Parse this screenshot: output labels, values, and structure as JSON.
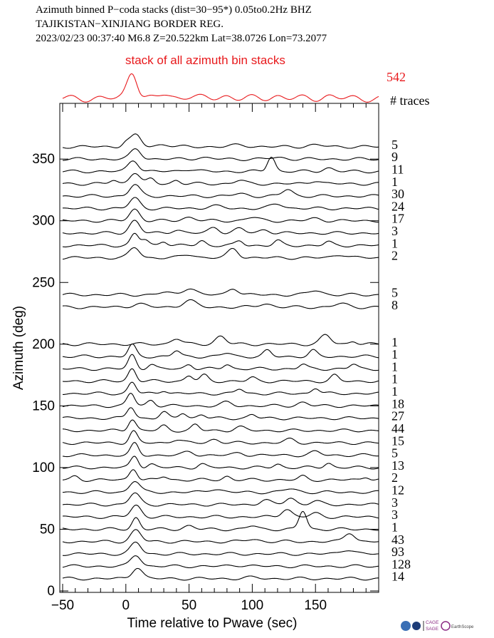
{
  "header": {
    "line1": "Azimuth binned P−coda stacks (dist=30−95*)  0.05to0.2Hz  BHZ",
    "line2": "TAJIKISTAN−XINJIANG BORDER REG.",
    "line3": "2023/02/23  00:37:40  M6.8  Z=20.522km Lat=38.0726 Lon=73.2077"
  },
  "stack": {
    "label": "stack of all azimuth bin stacks",
    "total_traces": "542",
    "color": "#e8191c"
  },
  "traces_header": "# traces",
  "logos": {
    "badge1": "CAGE",
    "badge2": "SAGE",
    "badge3": "EarthScope"
  },
  "chart_data": {
    "type": "line",
    "xlabel": "Time relative to Pwave (sec)",
    "ylabel": "Azimuth (deg)",
    "xlim": [
      -50,
      200
    ],
    "ylim": [
      0,
      375
    ],
    "xticks": [
      -50,
      0,
      50,
      100,
      150
    ],
    "xtick_labels": [
      "−50",
      "0",
      "50",
      "100",
      "150"
    ],
    "yticks": [
      0,
      50,
      100,
      150,
      200,
      250,
      300,
      350
    ],
    "series": [
      {
        "azimuth": 360,
        "count": "5",
        "peaks": [
          [
            8,
            1.0,
            4
          ],
          [
            0,
            0.4,
            3
          ],
          [
            30,
            0.2,
            5
          ],
          [
            90,
            0.15,
            6
          ],
          [
            150,
            0.15,
            6
          ]
        ]
      },
      {
        "azimuth": 350,
        "count": "9",
        "peaks": [
          [
            8,
            0.9,
            4
          ],
          [
            60,
            0.12,
            6
          ],
          [
            120,
            0.12,
            6
          ]
        ]
      },
      {
        "azimuth": 340,
        "count": "11",
        "peaks": [
          [
            6,
            1.0,
            4
          ],
          [
            115,
            1.3,
            3
          ],
          [
            160,
            0.3,
            4
          ],
          [
            50,
            0.2,
            5
          ]
        ]
      },
      {
        "azimuth": 330,
        "count": "1",
        "peaks": [
          [
            7,
            1.0,
            4
          ],
          [
            20,
            0.4,
            3
          ],
          [
            40,
            0.3,
            3
          ],
          [
            -10,
            0.3,
            3
          ],
          [
            90,
            0.3,
            4
          ],
          [
            150,
            0.3,
            4
          ]
        ]
      },
      {
        "azimuth": 320,
        "count": "30",
        "peaks": [
          [
            7,
            1.0,
            4
          ],
          [
            128,
            0.6,
            4
          ],
          [
            90,
            0.2,
            5
          ]
        ]
      },
      {
        "azimuth": 310,
        "count": "24",
        "peaks": [
          [
            7,
            0.9,
            4
          ],
          [
            120,
            0.4,
            5
          ],
          [
            70,
            0.2,
            6
          ]
        ]
      },
      {
        "azimuth": 300,
        "count": "17",
        "peaks": [
          [
            7,
            1.0,
            4
          ],
          [
            50,
            0.3,
            5
          ],
          [
            100,
            0.3,
            5
          ],
          [
            150,
            0.2,
            5
          ]
        ]
      },
      {
        "azimuth": 290,
        "count": "3",
        "peaks": [
          [
            7,
            1.1,
            4
          ],
          [
            70,
            0.5,
            4
          ],
          [
            90,
            0.4,
            4
          ],
          [
            110,
            0.3,
            4
          ],
          [
            40,
            0.3,
            4
          ]
        ]
      },
      {
        "azimuth": 280,
        "count": "1",
        "peaks": [
          [
            7,
            1.0,
            3
          ],
          [
            15,
            0.5,
            3
          ],
          [
            30,
            0.4,
            3
          ],
          [
            60,
            0.4,
            3
          ],
          [
            90,
            0.4,
            3
          ],
          [
            120,
            0.4,
            3
          ],
          [
            160,
            0.3,
            3
          ]
        ]
      },
      {
        "azimuth": 270,
        "count": "2",
        "peaks": [
          [
            7,
            0.9,
            4
          ],
          [
            85,
            0.8,
            4
          ],
          [
            50,
            0.3,
            5
          ],
          [
            170,
            0.3,
            5
          ]
        ]
      },
      {
        "azimuth": 240,
        "count": "5",
        "peaks": [
          [
            50,
            0.6,
            5
          ],
          [
            85,
            0.6,
            4
          ],
          [
            150,
            0.4,
            5
          ],
          [
            30,
            0.2,
            5
          ]
        ]
      },
      {
        "azimuth": 230,
        "count": "8",
        "peaks": [
          [
            50,
            0.6,
            5
          ],
          [
            10,
            0.3,
            5
          ],
          [
            110,
            0.3,
            5
          ],
          [
            170,
            0.3,
            5
          ]
        ]
      },
      {
        "azimuth": 200,
        "count": "1",
        "peaks": [
          [
            40,
            0.5,
            4
          ],
          [
            75,
            0.7,
            4
          ],
          [
            158,
            0.8,
            4
          ],
          [
            180,
            0.3,
            3
          ]
        ]
      },
      {
        "azimuth": 190,
        "count": "1",
        "peaks": [
          [
            5,
            1.0,
            3
          ],
          [
            40,
            0.5,
            3
          ],
          [
            112,
            0.5,
            3
          ],
          [
            148,
            0.5,
            3
          ],
          [
            80,
            0.3,
            4
          ]
        ]
      },
      {
        "azimuth": 180,
        "count": "1",
        "peaks": [
          [
            5,
            1.2,
            3
          ],
          [
            20,
            0.4,
            3
          ],
          [
            50,
            0.4,
            3
          ],
          [
            80,
            0.4,
            3
          ],
          [
            140,
            0.4,
            3
          ],
          [
            180,
            0.4,
            3
          ]
        ]
      },
      {
        "azimuth": 170,
        "count": "1",
        "peaks": [
          [
            5,
            1.1,
            3
          ],
          [
            50,
            0.5,
            3
          ],
          [
            62,
            0.5,
            3
          ],
          [
            100,
            0.3,
            3
          ],
          [
            165,
            0.5,
            3
          ]
        ]
      },
      {
        "azimuth": 160,
        "count": "1",
        "peaks": [
          [
            5,
            1.0,
            3
          ],
          [
            30,
            0.3,
            3
          ],
          [
            90,
            0.4,
            3
          ],
          [
            150,
            0.5,
            3
          ]
        ]
      },
      {
        "azimuth": 150,
        "count": "18",
        "peaks": [
          [
            4,
            1.1,
            3
          ],
          [
            20,
            0.5,
            3
          ],
          [
            80,
            0.3,
            4
          ],
          [
            140,
            0.3,
            4
          ]
        ]
      },
      {
        "azimuth": 140,
        "count": "27",
        "peaks": [
          [
            4,
            1.0,
            3
          ],
          [
            30,
            0.5,
            3
          ],
          [
            45,
            0.5,
            3
          ],
          [
            60,
            0.3,
            3
          ],
          [
            100,
            0.3,
            3
          ]
        ]
      },
      {
        "azimuth": 130,
        "count": "44",
        "peaks": [
          [
            5,
            1.0,
            3
          ],
          [
            30,
            0.4,
            3
          ],
          [
            55,
            0.5,
            3
          ],
          [
            90,
            0.3,
            4
          ]
        ]
      },
      {
        "azimuth": 120,
        "count": "15",
        "peaks": [
          [
            6,
            1.0,
            3
          ],
          [
            40,
            0.3,
            4
          ],
          [
            70,
            0.3,
            4
          ],
          [
            130,
            0.3,
            4
          ]
        ]
      },
      {
        "azimuth": 110,
        "count": "5",
        "peaks": [
          [
            7,
            1.0,
            3
          ],
          [
            50,
            0.3,
            4
          ],
          [
            90,
            0.2,
            4
          ],
          [
            150,
            0.3,
            4
          ]
        ]
      },
      {
        "azimuth": 100,
        "count": "13",
        "peaks": [
          [
            7,
            1.0,
            3
          ],
          [
            20,
            0.3,
            3
          ],
          [
            60,
            0.3,
            3
          ],
          [
            120,
            0.3,
            3
          ],
          [
            160,
            0.4,
            3
          ]
        ]
      },
      {
        "azimuth": 90,
        "count": "2",
        "peaks": [
          [
            6,
            1.0,
            3
          ],
          [
            -40,
            0.3,
            3
          ],
          [
            30,
            0.3,
            3
          ],
          [
            80,
            0.3,
            3
          ],
          [
            140,
            0.3,
            3
          ],
          [
            190,
            0.3,
            3
          ]
        ]
      },
      {
        "azimuth": 80,
        "count": "12",
        "peaks": [
          [
            7,
            1.0,
            4
          ],
          [
            70,
            0.3,
            5
          ],
          [
            130,
            0.3,
            5
          ]
        ]
      },
      {
        "azimuth": 70,
        "count": "3",
        "peaks": [
          [
            7,
            1.0,
            4
          ],
          [
            110,
            0.4,
            4
          ],
          [
            130,
            0.6,
            4
          ],
          [
            150,
            0.3,
            4
          ]
        ]
      },
      {
        "azimuth": 60,
        "count": "3",
        "peaks": [
          [
            8,
            1.0,
            4
          ],
          [
            127,
            0.7,
            4
          ],
          [
            150,
            0.3,
            4
          ]
        ]
      },
      {
        "azimuth": 50,
        "count": "1",
        "peaks": [
          [
            8,
            1.0,
            3
          ],
          [
            140,
            1.6,
            3
          ],
          [
            50,
            0.3,
            4
          ],
          [
            100,
            0.3,
            4
          ]
        ]
      },
      {
        "azimuth": 40,
        "count": "43",
        "peaks": [
          [
            8,
            1.0,
            4
          ],
          [
            177,
            0.8,
            4
          ],
          [
            100,
            0.2,
            5
          ]
        ]
      },
      {
        "azimuth": 30,
        "count": "93",
        "peaks": [
          [
            8,
            1.0,
            4
          ],
          [
            175,
            0.4,
            5
          ]
        ]
      },
      {
        "azimuth": 20,
        "count": "128",
        "peaks": [
          [
            8,
            1.0,
            4
          ],
          [
            90,
            0.1,
            6
          ]
        ]
      },
      {
        "azimuth": 10,
        "count": "14",
        "peaks": [
          [
            9,
            1.0,
            4
          ],
          [
            100,
            0.1,
            6
          ]
        ]
      }
    ]
  }
}
